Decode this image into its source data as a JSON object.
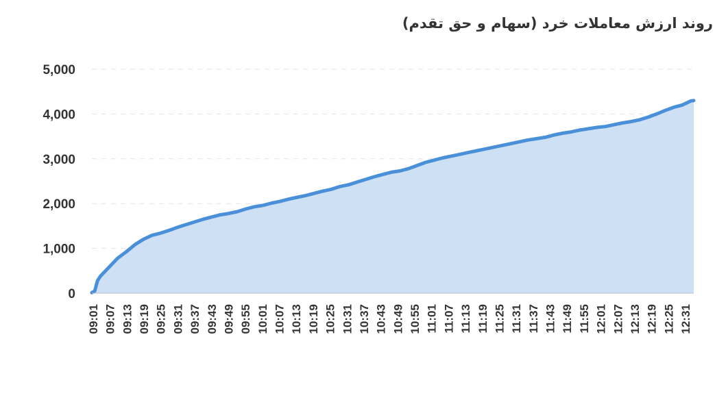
{
  "chart_data": {
    "type": "area",
    "title": "روند ارزش معاملات خرد (سهام و حق تقدم)",
    "xlabel": "",
    "ylabel": "",
    "ylim": [
      0,
      5000
    ],
    "y_ticks": [
      "0",
      "1,000",
      "2,000",
      "3,000",
      "4,000",
      "5,000"
    ],
    "y_tick_values": [
      0,
      1000,
      2000,
      3000,
      4000,
      5000
    ],
    "x_tick_labels": [
      "09:01",
      "09:07",
      "09:13",
      "09:19",
      "09:25",
      "09:31",
      "09:37",
      "09:43",
      "09:49",
      "09:55",
      "10:01",
      "10:07",
      "10:13",
      "10:19",
      "10:25",
      "10:31",
      "10:37",
      "10:43",
      "10:49",
      "10:55",
      "11:01",
      "11:07",
      "11:13",
      "11:19",
      "11:25",
      "11:31",
      "11:37",
      "11:43",
      "11:49",
      "11:55",
      "12:01",
      "12:07",
      "12:13",
      "12:19",
      "12:25",
      "12:31"
    ],
    "grid": true,
    "legend": "none",
    "colors": {
      "line": "#4a90d9",
      "fill": "#cde0f4"
    },
    "series": [
      {
        "x": [
          "09:01",
          "09:02",
          "09:03",
          "09:04",
          "09:07",
          "09:10",
          "09:13",
          "09:16",
          "09:19",
          "09:22",
          "09:25",
          "09:28",
          "09:31",
          "09:34",
          "09:37",
          "09:40",
          "09:43",
          "09:46",
          "09:49",
          "09:52",
          "09:55",
          "09:58",
          "10:01",
          "10:04",
          "10:07",
          "10:10",
          "10:13",
          "10:16",
          "10:19",
          "10:22",
          "10:25",
          "10:28",
          "10:31",
          "10:34",
          "10:37",
          "10:40",
          "10:43",
          "10:46",
          "10:49",
          "10:52",
          "10:55",
          "10:58",
          "11:01",
          "11:04",
          "11:07",
          "11:10",
          "11:13",
          "11:16",
          "11:19",
          "11:22",
          "11:25",
          "11:28",
          "11:31",
          "11:34",
          "11:37",
          "11:40",
          "11:43",
          "11:46",
          "11:49",
          "11:52",
          "11:55",
          "11:58",
          "12:01",
          "12:04",
          "12:07",
          "12:10",
          "12:13",
          "12:16",
          "12:19",
          "12:22",
          "12:25",
          "12:28",
          "12:31",
          "12:32"
        ],
        "values": [
          10,
          50,
          280,
          380,
          580,
          780,
          920,
          1080,
          1200,
          1290,
          1340,
          1400,
          1470,
          1530,
          1590,
          1650,
          1700,
          1750,
          1780,
          1820,
          1880,
          1930,
          1960,
          2010,
          2050,
          2100,
          2140,
          2180,
          2230,
          2280,
          2320,
          2380,
          2420,
          2480,
          2540,
          2600,
          2650,
          2700,
          2730,
          2780,
          2850,
          2920,
          2970,
          3020,
          3060,
          3100,
          3140,
          3180,
          3220,
          3260,
          3300,
          3340,
          3380,
          3420,
          3450,
          3480,
          3530,
          3570,
          3600,
          3640,
          3670,
          3700,
          3720,
          3760,
          3800,
          3830,
          3870,
          3930,
          4000,
          4080,
          4150,
          4200,
          4290,
          4300
        ]
      }
    ]
  }
}
